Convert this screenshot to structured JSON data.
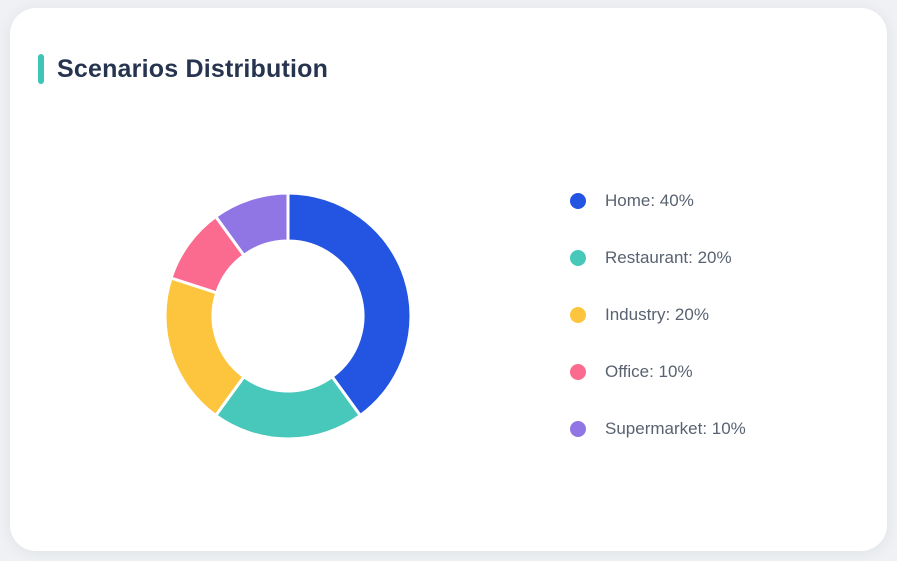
{
  "card": {
    "title": "Scenarios Distribution",
    "accent_color": "#3fc5b7"
  },
  "chart_data": {
    "type": "pie",
    "variant": "donut",
    "title": "Scenarios Distribution",
    "legend_position": "right",
    "start_angle_deg": 0,
    "direction": "clockwise",
    "inner_radius_ratio": 0.61,
    "slice_border_color": "#ffffff",
    "items": [
      {
        "label": "Home",
        "value": 40,
        "color": "#2355e2",
        "legend_text": "Home: 40%"
      },
      {
        "label": "Restaurant",
        "value": 20,
        "color": "#47c8bb",
        "legend_text": "Restaurant: 20%"
      },
      {
        "label": "Industry",
        "value": 20,
        "color": "#fdc53e",
        "legend_text": "Industry: 20%"
      },
      {
        "label": "Office",
        "value": 10,
        "color": "#fb6b90",
        "legend_text": "Office: 10%"
      },
      {
        "label": "Supermarket",
        "value": 10,
        "color": "#9076e4",
        "legend_text": "Supermarket: 10%"
      }
    ]
  }
}
